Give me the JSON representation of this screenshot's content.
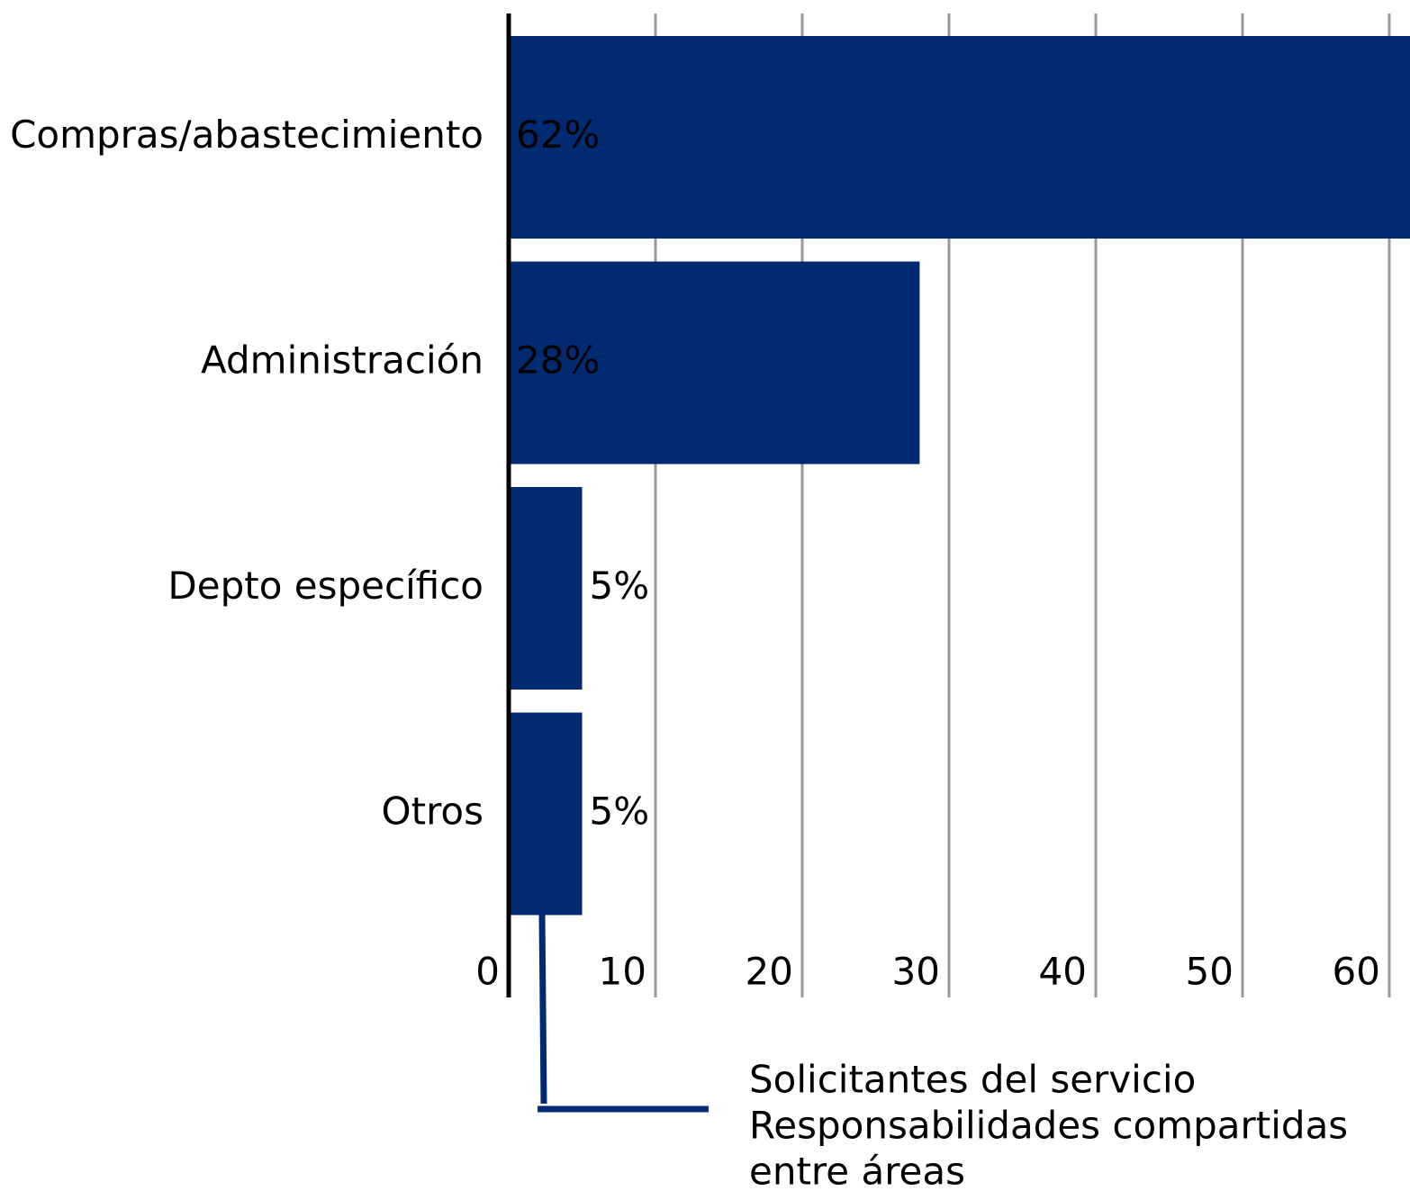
{
  "chart_data": {
    "type": "bar",
    "orientation": "horizontal",
    "categories": [
      "Compras/abastecimiento",
      "Administración",
      "Depto específico",
      "Otros"
    ],
    "values": [
      62,
      28,
      5,
      5
    ],
    "value_labels": [
      "62%",
      "28%",
      "5%",
      "5%"
    ],
    "color": "#002b73",
    "xlim": [
      0,
      60
    ],
    "xticks": [
      0,
      10,
      20,
      30,
      40,
      50,
      60
    ],
    "grid": true,
    "annotation": [
      "Solicitantes del servicio",
      "Responsabilidades compartidas",
      "entre áreas"
    ]
  }
}
